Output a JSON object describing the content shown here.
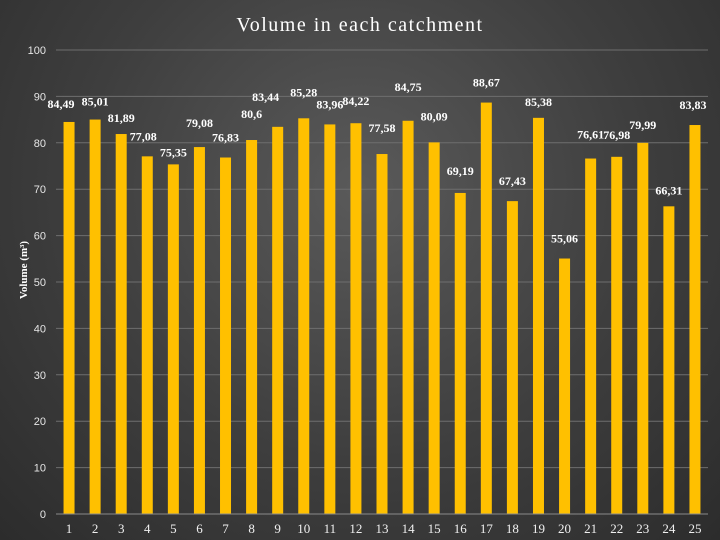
{
  "chart_data": {
    "type": "bar",
    "title": "Volume in each catchment",
    "xlabel": "",
    "ylabel": "Volume (m³)",
    "ylim": [
      0,
      100
    ],
    "yticks": [
      0,
      10,
      20,
      30,
      40,
      50,
      60,
      70,
      80,
      90,
      100
    ],
    "grid": true,
    "categories": [
      "1",
      "2",
      "3",
      "4",
      "5",
      "6",
      "7",
      "8",
      "9",
      "10",
      "11",
      "12",
      "13",
      "14",
      "15",
      "16",
      "17",
      "18",
      "19",
      "20",
      "21",
      "22",
      "23",
      "24",
      "25"
    ],
    "values": [
      84.49,
      85.01,
      81.89,
      77.08,
      75.35,
      79.08,
      76.83,
      80.6,
      83.44,
      85.28,
      83.96,
      84.22,
      77.58,
      84.75,
      80.09,
      69.19,
      88.67,
      67.43,
      85.38,
      55.06,
      76.61,
      76.98,
      79.99,
      66.31,
      83.83
    ],
    "labels": [
      "84,49",
      "85,01",
      "81,89",
      "77,08",
      "75,35",
      "79,08",
      "76,83",
      "80,6",
      "83,44",
      "85,28",
      "83,96",
      "84,22",
      "77,58",
      "84,75",
      "80,09",
      "69,19",
      "88,67",
      "67,43",
      "85,38",
      "55,06",
      "76,61",
      "76,98",
      "79,99",
      "66,31",
      "83,83"
    ],
    "colors": {
      "bar": "#ffc000",
      "text": "#ffffff"
    }
  }
}
